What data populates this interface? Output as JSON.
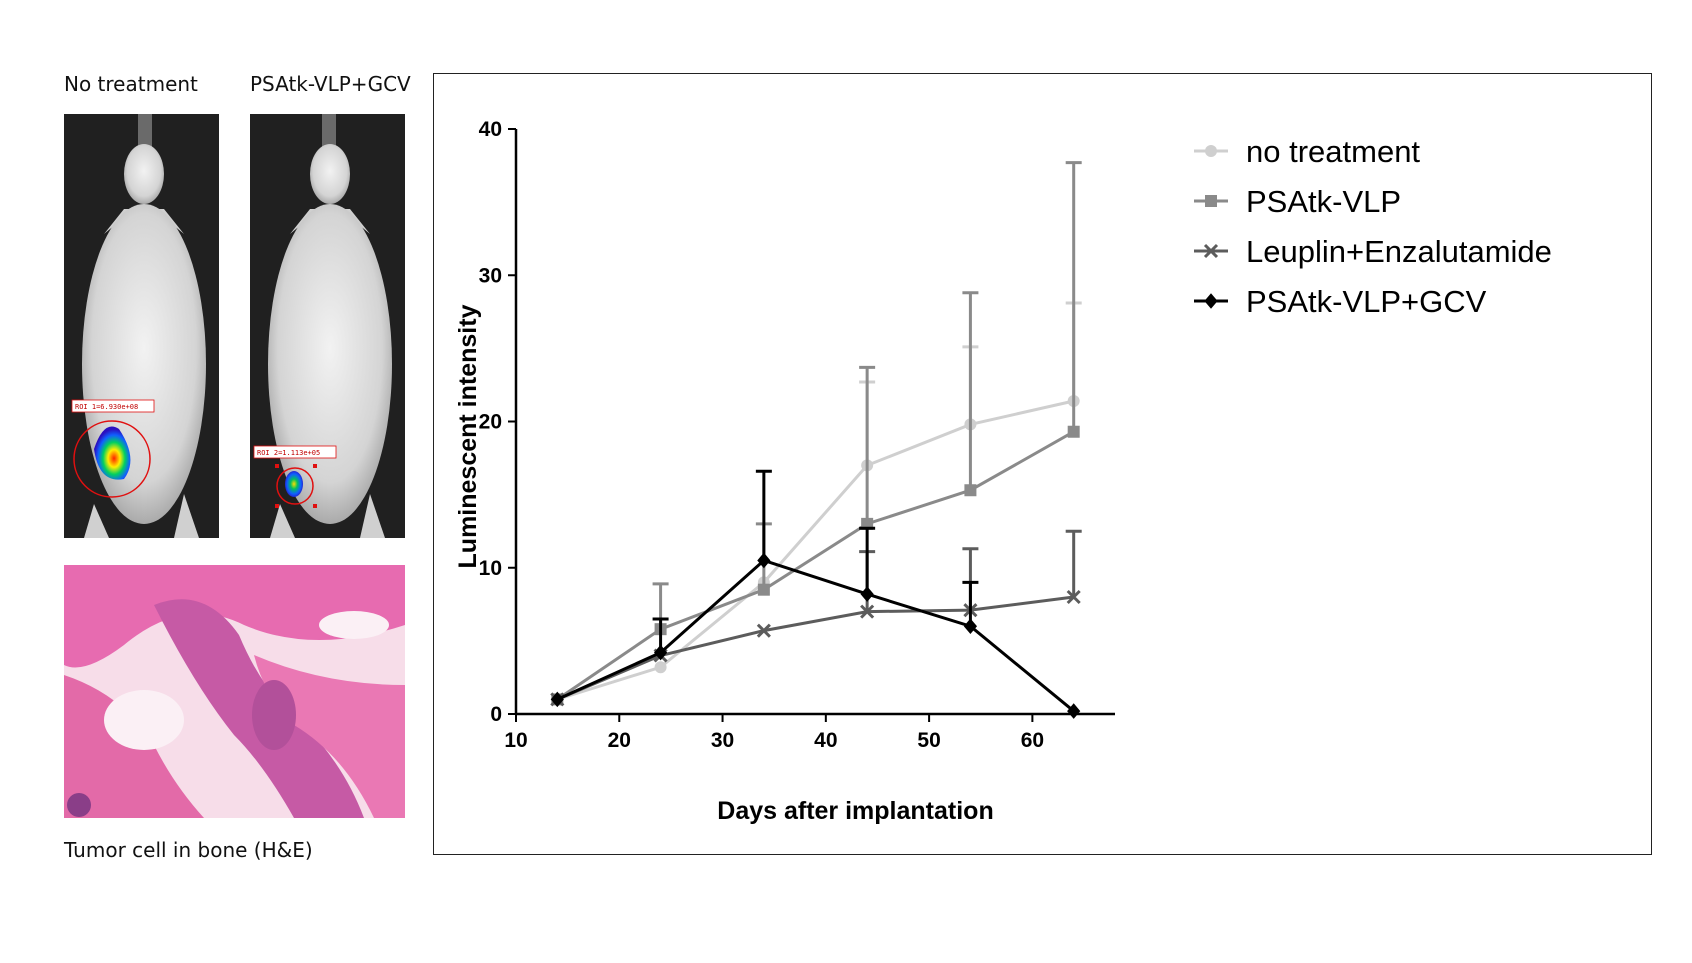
{
  "figure": {
    "panel_a_label": "No treatment",
    "panel_b_label": "PSAtk-VLP+GCV",
    "roi_a_text": "ROI 1=6.930e+08",
    "roi_b_text": "ROI 2=1.113e+05",
    "histology_caption": "Tumor cell in bone (H&E)"
  },
  "chart_data": {
    "type": "line",
    "title": "",
    "xlabel": "Days after implantation",
    "ylabel": "Luminescent intensity",
    "xlim": [
      10,
      68
    ],
    "ylim": [
      0,
      40
    ],
    "xticks": [
      10,
      20,
      30,
      40,
      50,
      60
    ],
    "yticks": [
      0,
      10,
      20,
      30,
      40
    ],
    "legend_position": "top-right",
    "series": [
      {
        "name": "no treatment",
        "marker": "circle",
        "color": "#cfcfcf",
        "x": [
          14,
          24,
          34,
          44,
          54,
          64
        ],
        "y": [
          1.0,
          3.2,
          9.0,
          17.0,
          19.8,
          21.4
        ],
        "err": [
          0,
          0,
          0,
          5.7,
          5.3,
          6.7
        ]
      },
      {
        "name": "PSAtk-VLP",
        "marker": "square",
        "color": "#8a8a8a",
        "x": [
          14,
          24,
          34,
          44,
          54,
          64
        ],
        "y": [
          1.0,
          5.8,
          8.5,
          13.0,
          15.3,
          19.3
        ],
        "err": [
          0,
          3.1,
          4.5,
          10.7,
          13.5,
          18.4
        ]
      },
      {
        "name": "Leuplin+Enzalutamide",
        "marker": "x",
        "color": "#5c5c5c",
        "x": [
          14,
          24,
          34,
          44,
          54,
          64
        ],
        "y": [
          1.0,
          4.0,
          5.7,
          7.0,
          7.1,
          8.0
        ],
        "err": [
          0,
          0,
          0,
          4.1,
          4.2,
          4.5
        ]
      },
      {
        "name": "PSAtk-VLP+GCV",
        "marker": "diamond",
        "color": "#000000",
        "x": [
          14,
          24,
          34,
          44,
          54,
          64
        ],
        "y": [
          1.0,
          4.2,
          10.5,
          8.2,
          6.0,
          0.2
        ],
        "err": [
          0,
          2.3,
          6.1,
          4.5,
          3.0,
          0
        ]
      }
    ]
  }
}
